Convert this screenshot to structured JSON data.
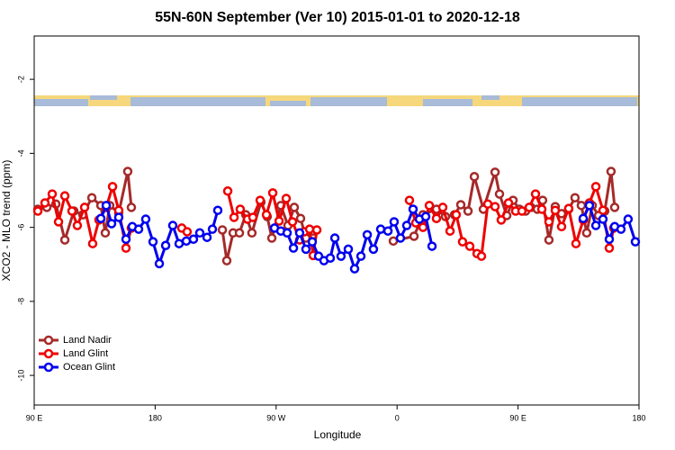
{
  "chart_data": {
    "type": "line",
    "title": "55N-60N September (Ver 10)   2015-01-01 to 2020-12-18",
    "x_label": "Longitude",
    "y_label": "XCO2 - MLO trend (ppm)",
    "xlim": [
      90,
      540
    ],
    "xticks": [
      {
        "value": 90,
        "label": "90 E"
      },
      {
        "value": 180,
        "label": "180"
      },
      {
        "value": 270,
        "label": "90 W"
      },
      {
        "value": 360,
        "label": "0"
      },
      {
        "value": 450,
        "label": "90 E"
      },
      {
        "value": 540,
        "label": "180"
      }
    ],
    "ylim": [
      -10.8,
      -0.83
    ],
    "yticks": [
      -10,
      -8,
      -6,
      -4,
      -2
    ],
    "legend": "bottom-left",
    "series": [
      {
        "name": "Land Nadir",
        "color": "#a52a2a",
        "x": [
          92.7,
          99.4,
          106.1,
          112.8,
          119.5,
          126.2,
          132.9,
          139.6,
          142.9,
          146.2,
          152.9,
          159.6,
          162.3,
          null,
          230,
          233.3,
          238,
          242.7,
          247.4,
          252,
          258.7,
          263.4,
          266.8,
          273.5,
          278.8,
          283.5,
          288.2,
          292.2,
          297.6,
          null,
          357.2,
          372.6,
          379.3,
          389.3,
          396,
          402.7,
          407.4,
          412.8,
          417.5,
          424.2,
          432.9,
          436.2,
          441.6,
          446.3,
          451,
          455.6,
          459.6,
          464.3,
          468.3,
          473,
          477.7,
          482.4,
          487.7,
          492.4,
          497.1,
          501.1,
          505.2,
          509.9,
          514.5,
          519.2,
          521.9
        ],
        "values": [
          -5.51,
          -5.46,
          -5.37,
          -6.34,
          -5.56,
          -5.66,
          -5.2,
          -5.41,
          -6.15,
          -5.41,
          -5.61,
          -4.49,
          -5.46,
          null,
          -6.07,
          -6.9,
          -6.15,
          -6.15,
          -5.66,
          -6.15,
          -5.32,
          -5.71,
          -6.29,
          -5.41,
          -5.95,
          -5.46,
          -5.76,
          -6.29,
          -6.1,
          null,
          -6.37,
          -6.24,
          -5.66,
          -5.51,
          -5.71,
          -5.66,
          -5.39,
          -5.56,
          -4.63,
          -5.51,
          -4.51,
          -5.1,
          -5.68,
          -5.27,
          -5.51,
          -5.56,
          -5.46,
          -5.51,
          -5.27,
          -6.34,
          -5.44,
          -5.63,
          -5.51,
          -5.2,
          -5.41,
          -6.15,
          -5.41,
          -5.68,
          -5.56,
          -4.49,
          -5.46
        ]
      },
      {
        "name": "Land Glint",
        "color": "#ee0000",
        "x": [
          92.7,
          98,
          103.4,
          108.1,
          112.8,
          118.1,
          122.1,
          127.5,
          133.5,
          138.2,
          143.6,
          148.3,
          152.9,
          158.3,
          162.3,
          null,
          199.8,
          203.8,
          null,
          234,
          238.7,
          243.3,
          248.7,
          252.7,
          258.1,
          262.8,
          267.5,
          272.2,
          277.5,
          282.2,
          287.5,
          290.9,
          294.9,
          297.6,
          300.3,
          null,
          369.2,
          373.9,
          379.3,
          384,
          389.3,
          394,
          399.4,
          404,
          408.7,
          414.1,
          419.5,
          422.8,
          427.5,
          432.9,
          437.5,
          442.9,
          448.2,
          452.9,
          458.3,
          463,
          467.7,
          473,
          477.7,
          482.4,
          487.7,
          493.1,
          498.5,
          503.1,
          507.9,
          513.2,
          517.9,
          521.2
        ],
        "values": [
          -5.56,
          -5.34,
          -5.1,
          -5.85,
          -5.15,
          -5.56,
          -5.95,
          -5.46,
          -6.44,
          -5.8,
          -5.46,
          -4.9,
          -5.54,
          -6.56,
          -6.02,
          null,
          -6.02,
          -6.12,
          null,
          -5.02,
          -5.73,
          -5.51,
          -5.78,
          -5.73,
          -5.27,
          -5.66,
          -5.07,
          -5.83,
          -5.22,
          -5.85,
          -6.34,
          -6.12,
          -6.05,
          -6.76,
          -6.07,
          null,
          -5.27,
          -5.88,
          -6.0,
          -5.41,
          -5.76,
          -5.46,
          -6.1,
          -5.66,
          -6.39,
          -6.51,
          -6.71,
          -6.78,
          -5.37,
          -5.44,
          -5.8,
          -5.34,
          -5.56,
          -5.56,
          -5.46,
          -5.1,
          -5.51,
          -5.85,
          -5.54,
          -5.98,
          -5.49,
          -6.44,
          -5.8,
          -5.34,
          -4.9,
          -5.54,
          -6.56,
          -6.02
        ]
      },
      {
        "name": "Ocean Glint",
        "color": "#0000ee",
        "x": [
          139.6,
          143.6,
          147.6,
          152.9,
          158.3,
          163,
          167.7,
          173,
          178.4,
          183.1,
          187.8,
          193.1,
          197.8,
          203.2,
          208.5,
          213.2,
          218.6,
          222.6,
          226.6,
          null,
          268.8,
          273.5,
          278.2,
          282.9,
          287.5,
          292.2,
          296.9,
          301.6,
          305.6,
          310.3,
          313.7,
          318.3,
          323.7,
          328.4,
          333.1,
          337.8,
          342.4,
          347.8,
          353.2,
          357.8,
          362.5,
          367.2,
          371.9,
          376.6,
          381.3,
          386,
          null,
          498.5,
          503.1,
          507.9,
          513.2,
          517.9,
          521.9,
          526.6,
          531.9,
          537.3
        ],
        "values": [
          -5.76,
          -5.41,
          -5.9,
          -5.73,
          -6.32,
          -5.98,
          -6.05,
          -5.78,
          -6.39,
          -6.98,
          -6.49,
          -5.95,
          -6.44,
          -6.37,
          -6.32,
          -6.15,
          -6.27,
          -6.05,
          -5.54,
          null,
          -6.02,
          -6.1,
          -6.15,
          -6.56,
          -6.15,
          -6.59,
          -6.39,
          -6.78,
          -6.9,
          -6.83,
          -6.29,
          -6.78,
          -6.59,
          -7.12,
          -6.78,
          -6.2,
          -6.59,
          -6.05,
          -6.1,
          -5.85,
          -6.29,
          -5.95,
          -5.51,
          -5.78,
          -5.71,
          -6.51,
          null,
          -5.76,
          -5.41,
          -5.95,
          -5.78,
          -6.32,
          -5.98,
          -6.05,
          -5.78,
          -6.39
        ]
      }
    ]
  }
}
